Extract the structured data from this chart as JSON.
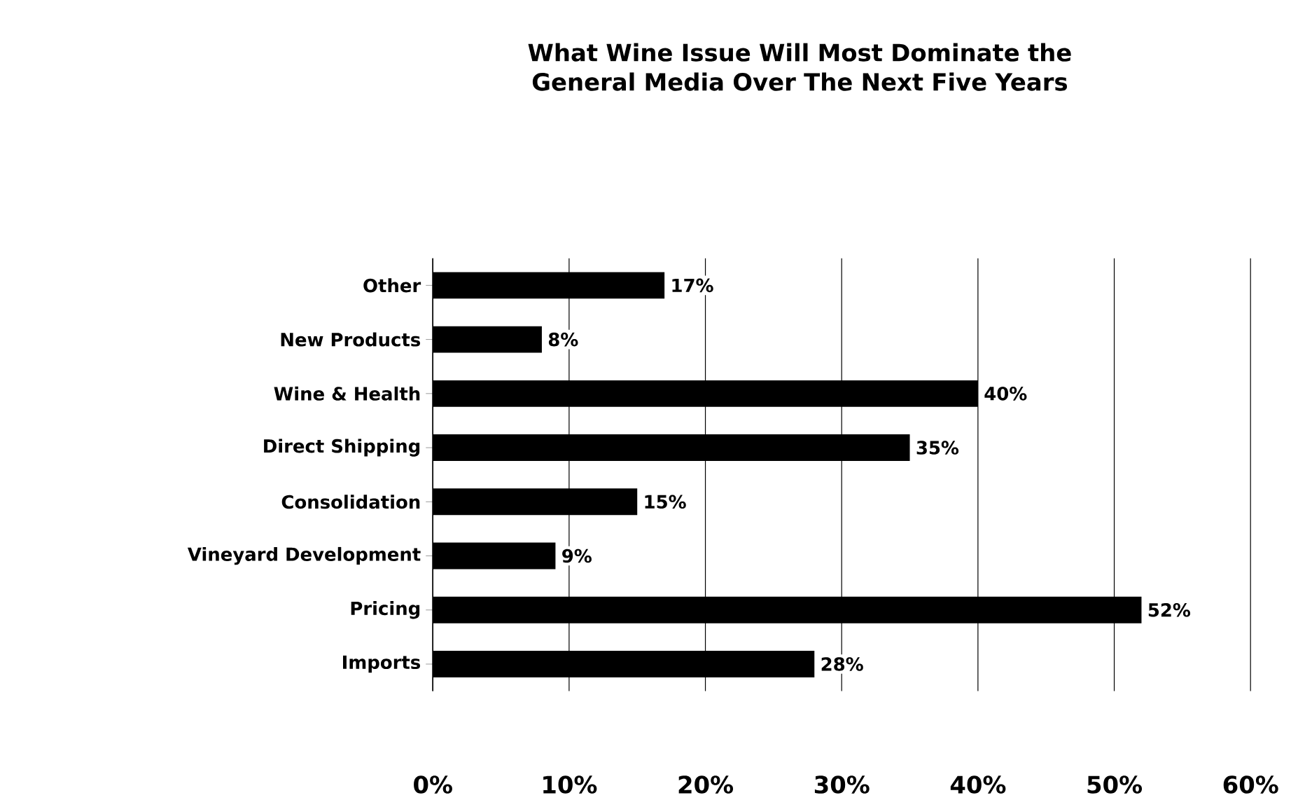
{
  "chart_data": {
    "type": "bar",
    "orientation": "horizontal",
    "title": "What Wine Issue Will Most Dominate the General Media Over The Next Five Years",
    "categories": [
      "Other",
      "New Products",
      "Wine & Health",
      "Direct  Shipping",
      "Consolidation",
      "Vineyard Development",
      "Pricing",
      "Imports"
    ],
    "values": [
      17,
      8,
      40,
      35,
      15,
      9,
      52,
      28
    ],
    "value_labels": [
      "17%",
      "8%",
      "40%",
      "35%",
      "15%",
      "9%",
      "52%",
      "28%"
    ],
    "color": "#000000",
    "xlim": [
      0,
      60
    ],
    "xticks": [
      {
        "value": 0,
        "label": "0%"
      },
      {
        "value": 10,
        "label": "10%"
      },
      {
        "value": 20,
        "label": "20%"
      },
      {
        "value": 30,
        "label": "30%"
      },
      {
        "value": 40,
        "label": "40%"
      },
      {
        "value": 50,
        "label": "50%"
      },
      {
        "value": 60,
        "label": "60%"
      }
    ],
    "grid": "x"
  }
}
